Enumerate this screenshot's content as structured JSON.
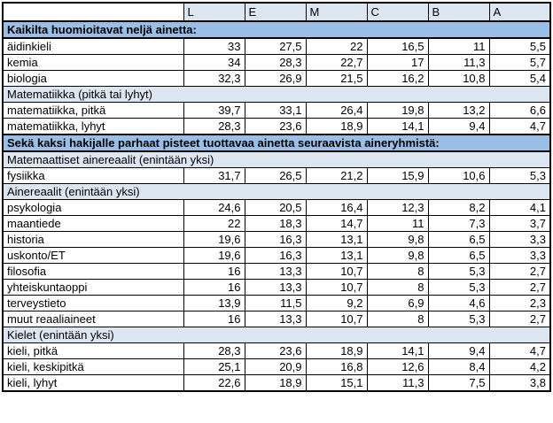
{
  "colors": {
    "section_dark_bg": "#9ABFE6",
    "section_light_bg": "#DCE6F1",
    "header_bg": "#DCE6F1",
    "border": "#000000",
    "cell_bg": "#ffffff",
    "text": "#000000"
  },
  "table": {
    "corner_label": "",
    "grade_columns": [
      "L",
      "E",
      "M",
      "C",
      "B",
      "A"
    ],
    "rows": [
      {
        "type": "section-dark",
        "label": "Kaikilta huomioitavat neljä ainetta:"
      },
      {
        "type": "data",
        "label": "äidinkieli",
        "values": [
          "33",
          "27,5",
          "22",
          "16,5",
          "11",
          "5,5"
        ]
      },
      {
        "type": "data",
        "label": "kemia",
        "values": [
          "34",
          "28,3",
          "22,7",
          "17",
          "11,3",
          "5,7"
        ]
      },
      {
        "type": "data",
        "label": "biologia",
        "values": [
          "32,3",
          "26,9",
          "21,5",
          "16,2",
          "10,8",
          "5,4"
        ]
      },
      {
        "type": "section-light",
        "label": "Matematiikka (pitkä tai lyhyt)"
      },
      {
        "type": "data",
        "label": "matematiikka, pitkä",
        "values": [
          "39,7",
          "33,1",
          "26,4",
          "19,8",
          "13,2",
          "6,6"
        ]
      },
      {
        "type": "data",
        "label": "matematiikka, lyhyt",
        "values": [
          "28,3",
          "23,6",
          "18,9",
          "14,1",
          "9,4",
          "4,7"
        ]
      },
      {
        "type": "section-dark",
        "label": "Sekä kaksi hakijalle parhaat pisteet tuottavaa ainetta seuraavista aineryhmistä:"
      },
      {
        "type": "section-light",
        "label": "Matemaattiset ainereaalit (enintään yksi)"
      },
      {
        "type": "data",
        "label": "fysiikka",
        "values": [
          "31,7",
          "26,5",
          "21,2",
          "15,9",
          "10,6",
          "5,3"
        ]
      },
      {
        "type": "section-light",
        "label": "Ainereaalit (enintään yksi)"
      },
      {
        "type": "data",
        "label": "psykologia",
        "values": [
          "24,6",
          "20,5",
          "16,4",
          "12,3",
          "8,2",
          "4,1"
        ]
      },
      {
        "type": "data",
        "label": "maantiede",
        "values": [
          "22",
          "18,3",
          "14,7",
          "11",
          "7,3",
          "3,7"
        ]
      },
      {
        "type": "data",
        "label": "historia",
        "values": [
          "19,6",
          "16,3",
          "13,1",
          "9,8",
          "6,5",
          "3,3"
        ]
      },
      {
        "type": "data",
        "label": "uskonto/ET",
        "values": [
          "19,6",
          "16,3",
          "13,1",
          "9,8",
          "6,5",
          "3,3"
        ]
      },
      {
        "type": "data",
        "label": "filosofia",
        "values": [
          "16",
          "13,3",
          "10,7",
          "8",
          "5,3",
          "2,7"
        ]
      },
      {
        "type": "data",
        "label": "yhteiskuntaoppi",
        "values": [
          "16",
          "13,3",
          "10,7",
          "8",
          "5,3",
          "2,7"
        ]
      },
      {
        "type": "data",
        "label": "terveystieto",
        "values": [
          "13,9",
          "11,5",
          "9,2",
          "6,9",
          "4,6",
          "2,3"
        ]
      },
      {
        "type": "data",
        "label": "muut reaaliaineet",
        "values": [
          "16",
          "13,3",
          "10,7",
          "8",
          "5,3",
          "2,7"
        ]
      },
      {
        "type": "section-light",
        "label": "Kielet (enintään yksi)"
      },
      {
        "type": "data",
        "label": "kieli, pitkä",
        "values": [
          "28,3",
          "23,6",
          "18,9",
          "14,1",
          "9,4",
          "4,7"
        ]
      },
      {
        "type": "data",
        "label": "kieli, keskipitkä",
        "values": [
          "25,1",
          "20,9",
          "16,8",
          "12,6",
          "8,4",
          "4,2"
        ]
      },
      {
        "type": "data",
        "label": "kieli, lyhyt",
        "values": [
          "22,6",
          "18,9",
          "15,1",
          "11,3",
          "7,5",
          "3,8"
        ]
      }
    ]
  }
}
